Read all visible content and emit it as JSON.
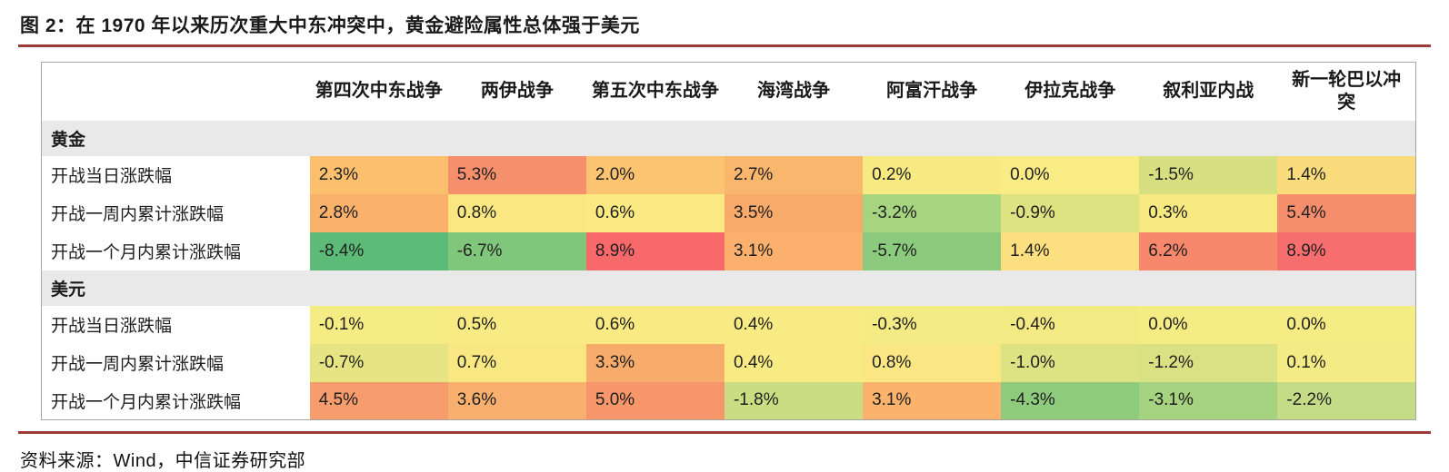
{
  "title": "图 2：在 1970 年以来历次重大中东冲突中，黄金避险属性总体强于美元",
  "source": "资料来源：Wind，中信证券研究部",
  "accent_color": "#9C3A37",
  "section_bg": "#E9E9E9",
  "chart_data": {
    "type": "table",
    "columns": [
      "第四次中东战争",
      "两伊战争",
      "第五次中东战争",
      "海湾战争",
      "阿富汗战争",
      "伊拉克战争",
      "叙利亚内战",
      "新一轮巴以冲突"
    ],
    "sections": [
      {
        "name": "黄金",
        "rows": [
          {
            "label": "开战当日涨跌幅",
            "values": [
              "2.3%",
              "5.3%",
              "2.0%",
              "2.7%",
              "0.2%",
              "0.0%",
              "-1.5%",
              "1.4%"
            ],
            "colors": [
              "#FBBF6E",
              "#F6906C",
              "#FCC470",
              "#F9B66D",
              "#F8EA82",
              "#F9EC84",
              "#D7E081",
              "#FBDC7D"
            ]
          },
          {
            "label": "开战一周内累计涨跌幅",
            "values": [
              "2.8%",
              "0.8%",
              "0.6%",
              "3.5%",
              "-3.2%",
              "-0.9%",
              "0.3%",
              "5.4%"
            ],
            "colors": [
              "#FAB16C",
              "#FAE782",
              "#FBE982",
              "#F8AA6B",
              "#A6D47F",
              "#DFE281",
              "#F7E982",
              "#F68E6C"
            ]
          },
          {
            "label": "开战一个月内累计涨跌幅",
            "values": [
              "-8.4%",
              "-6.7%",
              "8.9%",
              "3.1%",
              "-5.7%",
              "1.4%",
              "6.2%",
              "8.9%"
            ],
            "colors": [
              "#5DBB78",
              "#80C77C",
              "#F8696B",
              "#FBB16D",
              "#8CCB7D",
              "#FCDF7E",
              "#F7886C",
              "#F86E6E"
            ]
          }
        ]
      },
      {
        "name": "美元",
        "rows": [
          {
            "label": "开战当日涨跌幅",
            "values": [
              "-0.1%",
              "0.5%",
              "0.6%",
              "0.4%",
              "-0.3%",
              "-0.4%",
              "0.0%",
              "0.0%"
            ],
            "colors": [
              "#F5EC84",
              "#F8EB83",
              "#F9EA83",
              "#F8EB83",
              "#F4EB84",
              "#F3EA84",
              "#F6EC84",
              "#F6EC84"
            ]
          },
          {
            "label": "开战一周内累计涨跌幅",
            "values": [
              "-0.7%",
              "0.7%",
              "3.3%",
              "0.4%",
              "0.8%",
              "-1.0%",
              "-1.2%",
              "0.1%"
            ],
            "colors": [
              "#E7E583",
              "#F9E882",
              "#F8AC6C",
              "#F8EB83",
              "#FAE682",
              "#DDE282",
              "#D9E182",
              "#F4EB84"
            ]
          },
          {
            "label": "开战一个月内累计涨跌幅",
            "values": [
              "4.5%",
              "3.6%",
              "5.0%",
              "-1.8%",
              "3.1%",
              "-4.3%",
              "-3.1%",
              "-2.2%"
            ],
            "colors": [
              "#F79C6C",
              "#F9B06E",
              "#F7966B",
              "#CBDC82",
              "#FAB26D",
              "#8FCB7D",
              "#A5D37F",
              "#C4DC85"
            ]
          }
        ]
      }
    ]
  }
}
